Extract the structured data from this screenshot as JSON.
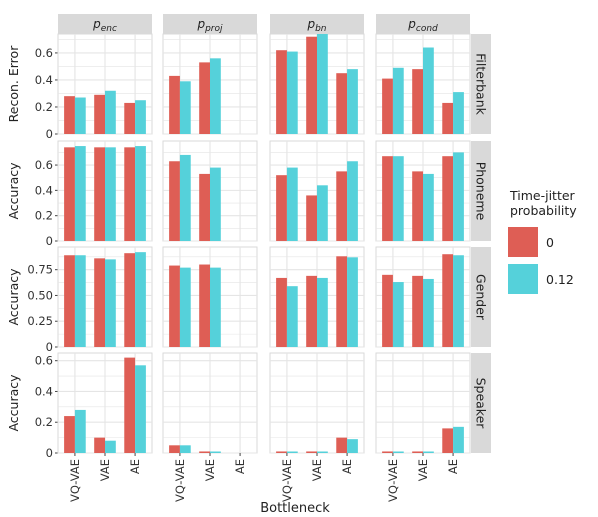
{
  "chart_data": {
    "type": "bar",
    "xlabel": "Bottleneck",
    "categories": [
      "VQ-VAE",
      "VAE",
      "AE"
    ],
    "columns": [
      {
        "base": "p",
        "sub": "enc"
      },
      {
        "base": "p",
        "sub": "proj"
      },
      {
        "base": "p",
        "sub": "bn"
      },
      {
        "base": "p",
        "sub": "cond"
      }
    ],
    "rows": [
      {
        "strip": "Filterbank",
        "ylabel": "Recon. Error",
        "ylim": [
          0,
          0.74
        ],
        "ticks": [
          0,
          0.2,
          0.4,
          0.6
        ],
        "tick_labels": [
          "0",
          "0.2",
          "0.4",
          "0.6"
        ]
      },
      {
        "strip": "Phoneme",
        "ylabel": "Accuracy",
        "ylim": [
          0,
          0.79
        ],
        "ticks": [
          0,
          0.2,
          0.4,
          0.6
        ],
        "tick_labels": [
          "0",
          "0.2",
          "0.4",
          "0.6"
        ]
      },
      {
        "strip": "Gender",
        "ylabel": "Accuracy",
        "ylim": [
          0,
          0.97
        ],
        "ticks": [
          0,
          0.25,
          0.5,
          0.75
        ],
        "tick_labels": [
          "0",
          "0.25",
          "0.50",
          "0.75"
        ]
      },
      {
        "strip": "Speaker",
        "ylabel": "Accuracy",
        "ylim": [
          0,
          0.65
        ],
        "ticks": [
          0,
          0.2,
          0.4,
          0.6
        ],
        "tick_labels": [
          "0",
          "0.2",
          "0.4",
          "0.6"
        ]
      }
    ],
    "legend": {
      "title": "Time-jitter probability",
      "title_lines": [
        "Time-jitter",
        "probability"
      ],
      "placement": "right",
      "items": [
        {
          "label": "0",
          "color": "#DE5E55"
        },
        {
          "label": "0.12",
          "color": "#55D1DA"
        }
      ]
    },
    "colors": {
      "strip": "#D9D9D9",
      "grid": "#E5E5E5",
      "border": "#D9D9D9",
      "text": "#222222"
    },
    "grid": true,
    "series": [
      {
        "name": "0",
        "values": [
          [
            [
              0.28,
              0.29,
              0.23
            ],
            [
              0.43,
              0.53,
              null
            ],
            [
              0.62,
              0.72,
              0.45
            ],
            [
              0.41,
              0.48,
              0.23
            ]
          ],
          [
            [
              0.74,
              0.74,
              0.74
            ],
            [
              0.63,
              0.53,
              null
            ],
            [
              0.52,
              0.36,
              0.55
            ],
            [
              0.67,
              0.55,
              0.67
            ]
          ],
          [
            [
              0.89,
              0.86,
              0.91
            ],
            [
              0.79,
              0.8,
              null
            ],
            [
              0.67,
              0.69,
              0.88
            ],
            [
              0.7,
              0.69,
              0.9
            ]
          ],
          [
            [
              0.24,
              0.1,
              0.62
            ],
            [
              0.05,
              0.01,
              null
            ],
            [
              0.01,
              0.01,
              0.1
            ],
            [
              0.01,
              0.01,
              0.16
            ]
          ]
        ]
      },
      {
        "name": "0.12",
        "values": [
          [
            [
              0.27,
              0.32,
              0.25
            ],
            [
              0.39,
              0.56,
              null
            ],
            [
              0.61,
              0.74,
              0.48
            ],
            [
              0.49,
              0.64,
              0.31
            ]
          ],
          [
            [
              0.75,
              0.74,
              0.75
            ],
            [
              0.68,
              0.58,
              null
            ],
            [
              0.58,
              0.44,
              0.63
            ],
            [
              0.67,
              0.53,
              0.7
            ]
          ],
          [
            [
              0.89,
              0.85,
              0.92
            ],
            [
              0.77,
              0.77,
              null
            ],
            [
              0.59,
              0.67,
              0.87
            ],
            [
              0.63,
              0.66,
              0.89
            ]
          ],
          [
            [
              0.28,
              0.08,
              0.57
            ],
            [
              0.05,
              0.005,
              null
            ],
            [
              0.005,
              0.005,
              0.09
            ],
            [
              0.005,
              0.005,
              0.17
            ]
          ]
        ]
      }
    ]
  }
}
